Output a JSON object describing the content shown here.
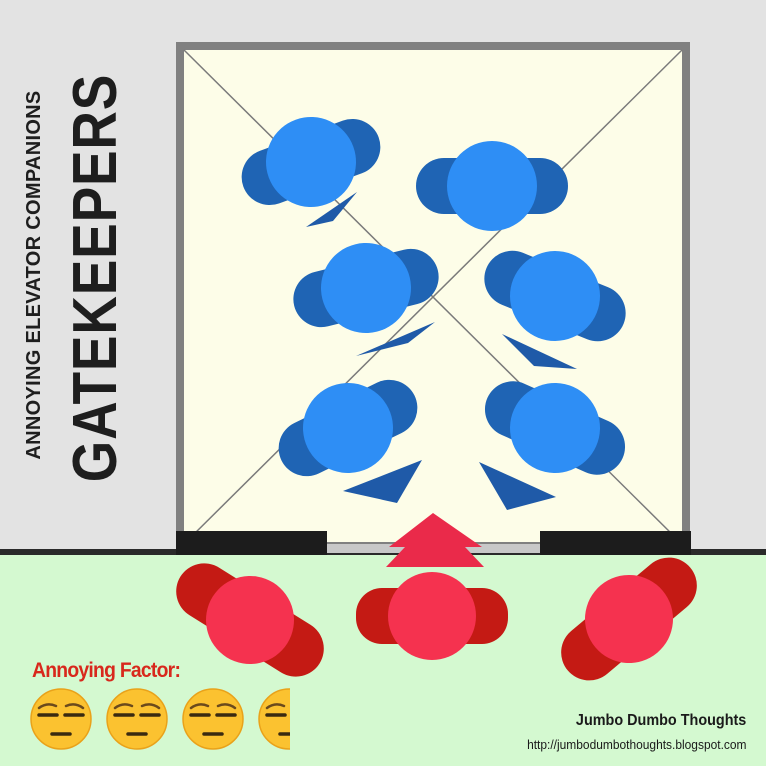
{
  "header": {
    "subtitle": "ANNOYING ELEVATOR COMPANIONS",
    "title": "GATEKEEPERS"
  },
  "rating": {
    "label": "Annoying Factor:",
    "value": 3.5,
    "max": 4,
    "icon": "unamused-face-icon"
  },
  "footer": {
    "blog_name": "Jumbo Dumbo Thoughts",
    "blog_url": "http://jumbodumbothoughts.blogspot.com"
  },
  "colors": {
    "background": "#e3e3e3",
    "elevator_floor": "#fdfde8",
    "lobby_floor": "#d4f9d0",
    "wall": "#808080",
    "gatekeeper_body": "#1f64b4",
    "gatekeeper_head": "#2e8ef5",
    "waiting_body": "#c41a14",
    "waiting_head": "#f5324f",
    "title_text": "#1e1e1e",
    "factor_text": "#d8281c"
  }
}
